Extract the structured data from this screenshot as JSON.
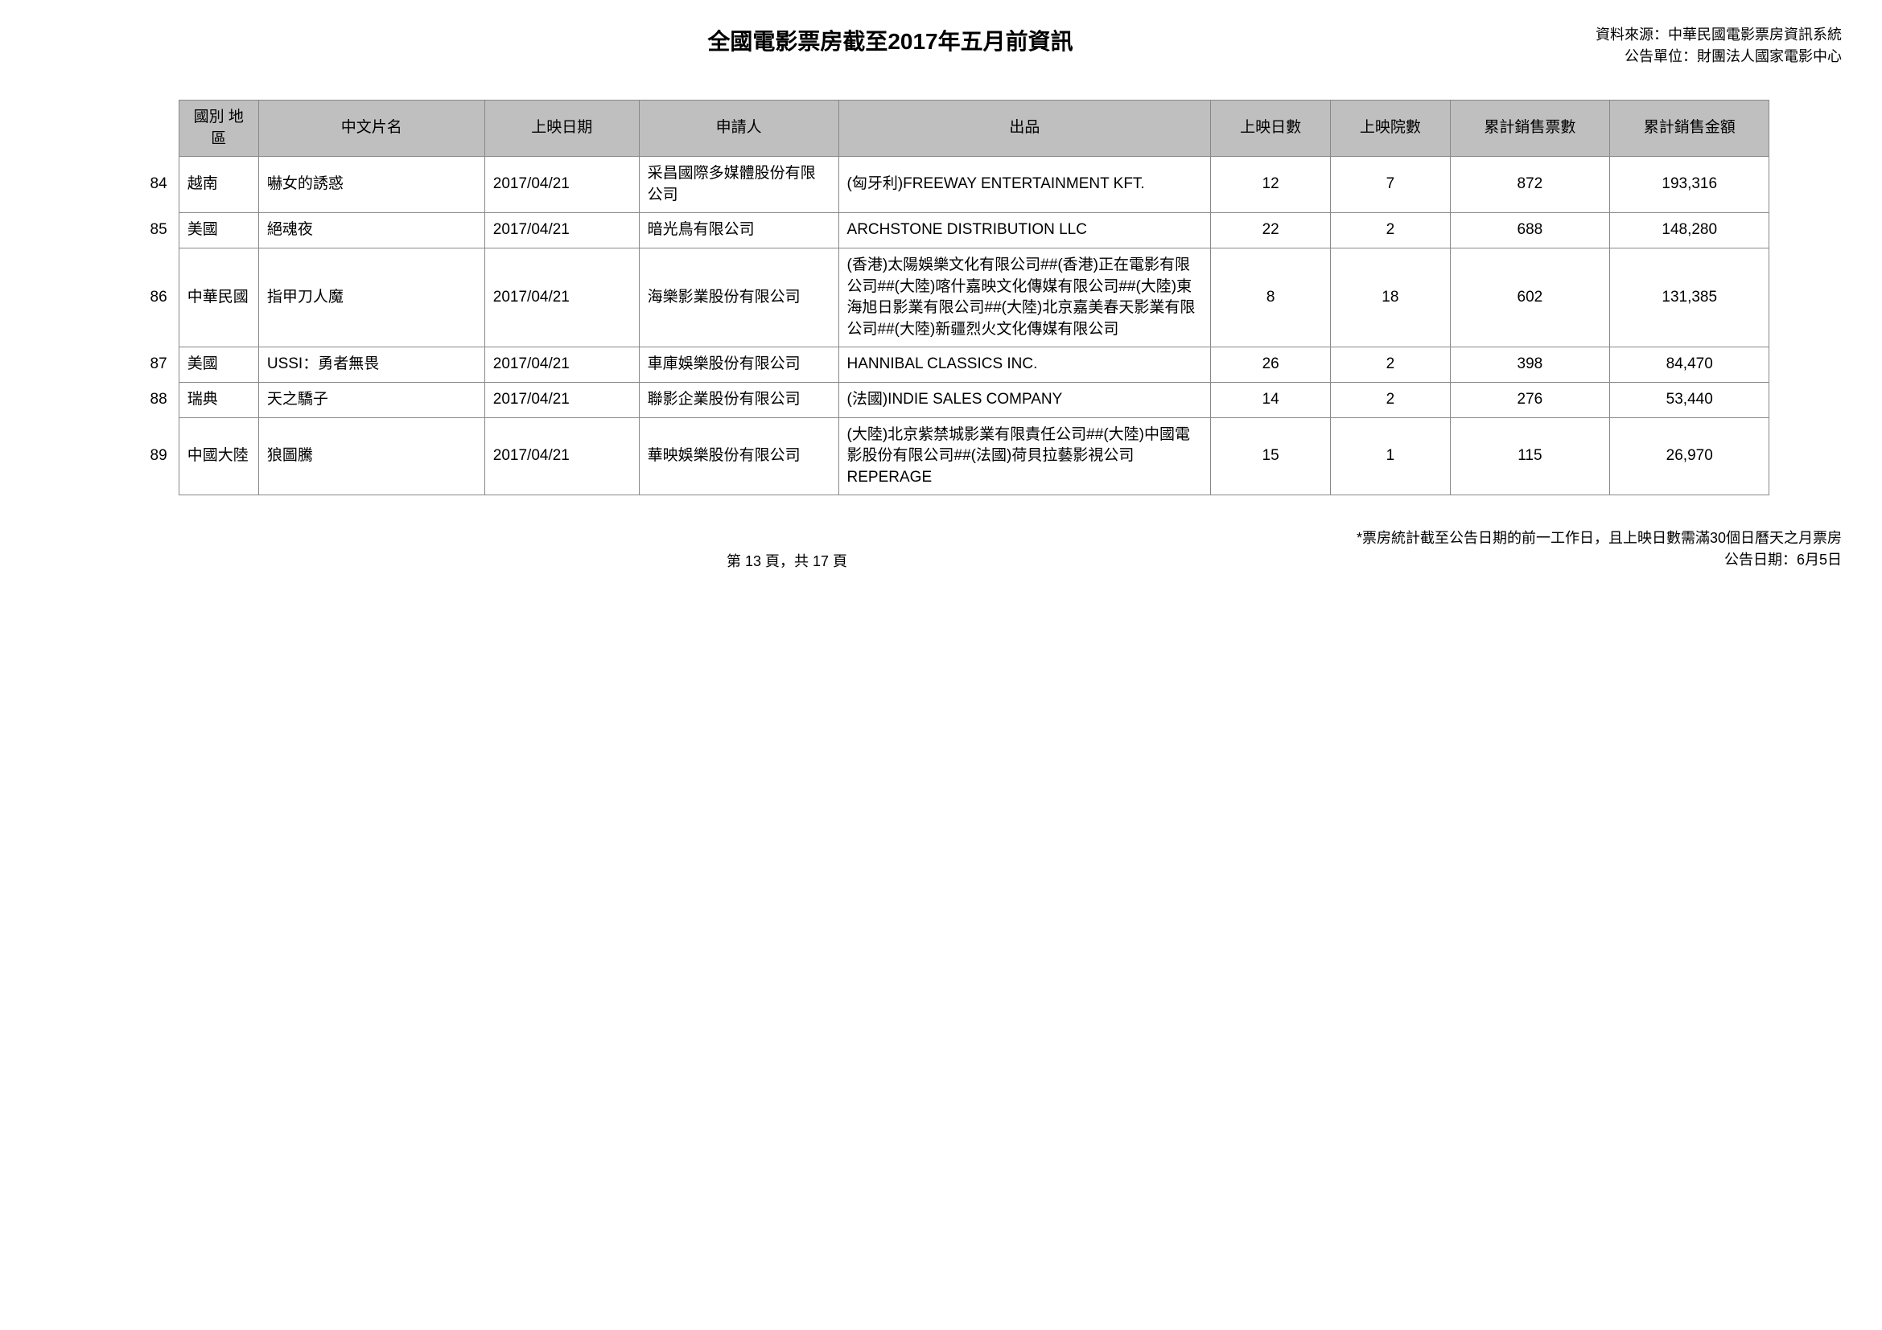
{
  "header": {
    "title": "全國電影票房截至2017年五月前資訊",
    "source_line1": "資料來源：中華民國電影票房資訊系統",
    "source_line2": "公告單位：財團法人國家電影中心"
  },
  "table": {
    "columns": [
      "國別\n地區",
      "中文片名",
      "上映日期",
      "申請人",
      "出品",
      "上映日數",
      "上映院數",
      "累計銷售票數",
      "累計銷售金額"
    ],
    "header_bg": "#bfbfbf",
    "border_color": "#888888",
    "rows": [
      {
        "num": "84",
        "region": "越南",
        "title": "嚇女的誘惑",
        "date": "2017/04/21",
        "applicant": "采昌國際多媒體股份有限公司",
        "producer": "(匈牙利)FREEWAY ENTERTAINMENT KFT.",
        "days": "12",
        "theaters": "7",
        "tickets": "872",
        "revenue": "193,316"
      },
      {
        "num": "85",
        "region": "美國",
        "title": "絕魂夜",
        "date": "2017/04/21",
        "applicant": "暗光鳥有限公司",
        "producer": "ARCHSTONE DISTRIBUTION LLC",
        "days": "22",
        "theaters": "2",
        "tickets": "688",
        "revenue": "148,280"
      },
      {
        "num": "86",
        "region": "中華民國",
        "title": "指甲刀人魔",
        "date": "2017/04/21",
        "applicant": "海樂影業股份有限公司",
        "producer": "(香港)太陽娛樂文化有限公司##(香港)正在電影有限公司##(大陸)喀什嘉映文化傳媒有限公司##(大陸)東海旭日影業有限公司##(大陸)北京嘉美春天影業有限公司##(大陸)新疆烈火文化傳媒有限公司",
        "days": "8",
        "theaters": "18",
        "tickets": "602",
        "revenue": "131,385"
      },
      {
        "num": "87",
        "region": "美國",
        "title": "USSI：勇者無畏",
        "date": "2017/04/21",
        "applicant": "車庫娛樂股份有限公司",
        "producer": "HANNIBAL CLASSICS INC.",
        "days": "26",
        "theaters": "2",
        "tickets": "398",
        "revenue": "84,470"
      },
      {
        "num": "88",
        "region": "瑞典",
        "title": "天之驕子",
        "date": "2017/04/21",
        "applicant": "聯影企業股份有限公司",
        "producer": "(法國)INDIE SALES COMPANY",
        "days": "14",
        "theaters": "2",
        "tickets": "276",
        "revenue": "53,440"
      },
      {
        "num": "89",
        "region": "中國大陸",
        "title": "狼圖騰",
        "date": "2017/04/21",
        "applicant": "華映娛樂股份有限公司",
        "producer": "(大陸)北京紫禁城影業有限責任公司##(大陸)中國電影股份有限公司##(法國)荷貝拉藝影視公司REPERAGE",
        "days": "15",
        "theaters": "1",
        "tickets": "115",
        "revenue": "26,970"
      }
    ]
  },
  "footer": {
    "page": "第 13 頁，共 17 頁",
    "note1": "*票房統計截至公告日期的前一工作日，且上映日數需滿30個日曆天之月票房",
    "note2": "公告日期：6月5日"
  }
}
